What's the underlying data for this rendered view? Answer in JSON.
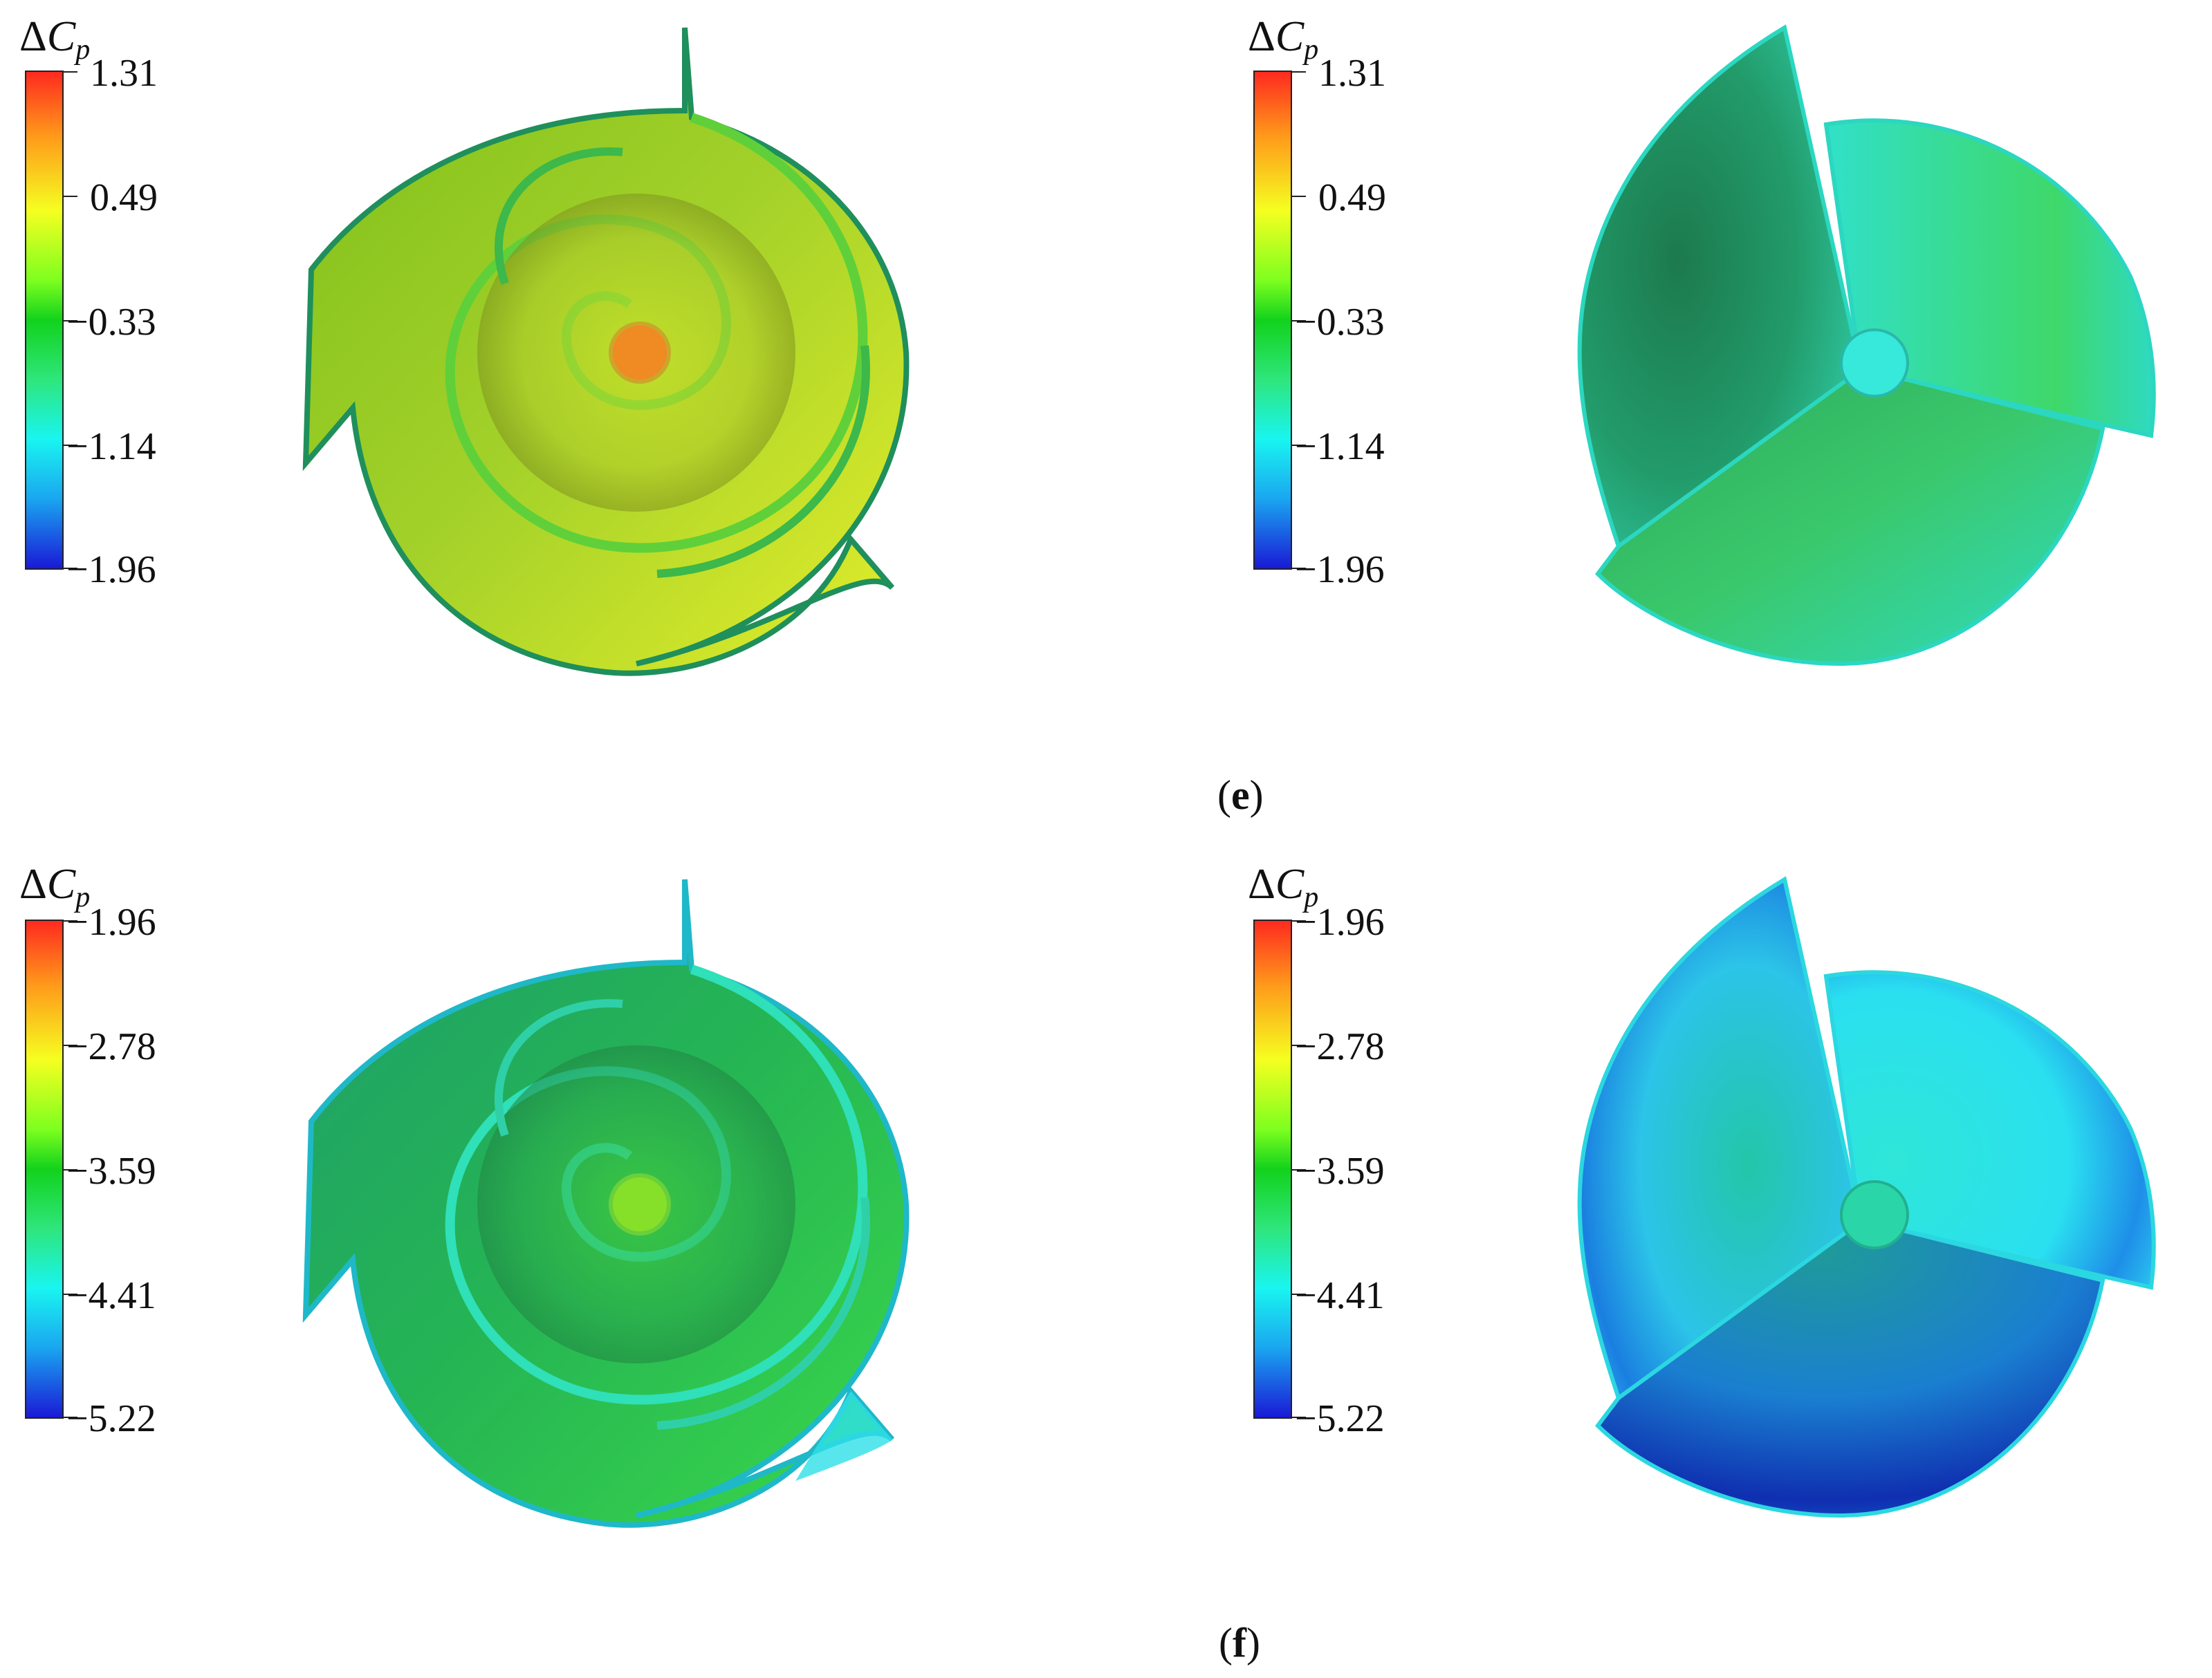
{
  "panels": [
    {
      "label": "e",
      "colorbar_left": {
        "title_symbol": "Δ",
        "title_var": "C",
        "title_sub": "p",
        "ticks": [
          "1.31",
          "0.49",
          "−0.33",
          "−1.14",
          "−1.96"
        ]
      },
      "colorbar_right": {
        "title_symbol": "Δ",
        "title_var": "C",
        "title_sub": "p",
        "ticks": [
          "1.31",
          "0.49",
          "−0.33",
          "−1.14",
          "−1.96"
        ]
      }
    },
    {
      "label": "f",
      "colorbar_left": {
        "title_symbol": "Δ",
        "title_var": "C",
        "title_sub": "p",
        "ticks": [
          "−1.96",
          "−2.78",
          "−3.59",
          "−4.41",
          "−5.22"
        ]
      },
      "colorbar_right": {
        "title_symbol": "Δ",
        "title_var": "C",
        "title_sub": "p",
        "ticks": [
          "−1.96",
          "−2.78",
          "−3.59",
          "−4.41",
          "−5.22"
        ]
      }
    }
  ],
  "colors": {
    "colormap": [
      "#ff2a1f",
      "#ff9a1a",
      "#f5ff20",
      "#12d21c",
      "#19f5f0",
      "#1aa6f0",
      "#1a1ad6"
    ]
  }
}
